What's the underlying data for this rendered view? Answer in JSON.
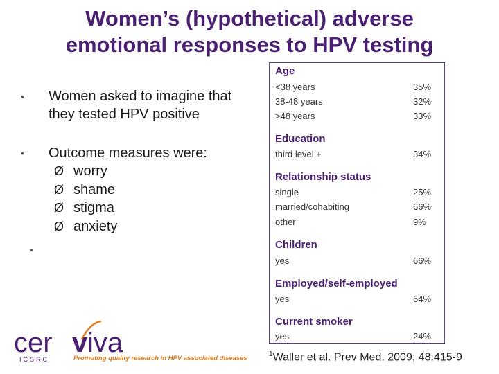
{
  "title": {
    "line1": "Women’s (hypothetical) adverse",
    "line2": "emotional responses to HPV testing"
  },
  "bullets": [
    {
      "text_line1": "Women asked to imagine that",
      "text_line2": "they tested HPV positive"
    },
    {
      "text": "Outcome measures were:"
    }
  ],
  "outcome_measures": [
    "worry",
    "shame",
    "stigma",
    "anxiety"
  ],
  "table": {
    "age": {
      "header": "Age",
      "rows": [
        {
          "label": "<38 years",
          "value": "35%"
        },
        {
          "label": "38-48 years",
          "value": "32%"
        },
        {
          "label": ">48 years",
          "value": "33%"
        }
      ]
    },
    "education": {
      "header": "Education",
      "rows": [
        {
          "label": "third level +",
          "value": "34%"
        }
      ]
    },
    "relationship": {
      "header": "Relationship status",
      "rows": [
        {
          "label": "single",
          "value": "25%"
        },
        {
          "label": "married/cohabiting",
          "value": "66%"
        },
        {
          "label": "other",
          "value": "9%"
        }
      ]
    },
    "children": {
      "header": "Children",
      "rows": [
        {
          "label": "yes",
          "value": "66%"
        }
      ]
    },
    "employed": {
      "header": "Employed/self-employed",
      "rows": [
        {
          "label": "yes",
          "value": "64%"
        }
      ]
    },
    "smoker": {
      "header": "Current smoker",
      "rows": [
        {
          "label": "yes",
          "value": "24%"
        }
      ]
    }
  },
  "logo": {
    "name_part1": "cer",
    "name_part2": "iva",
    "sub": "ICSRC",
    "tagline": "Promoting quality research in HPV associated diseases"
  },
  "footnote": {
    "marker": "1",
    "text": "Waller et al. Prev Med. 2009; 48:415-9"
  },
  "colors": {
    "purple": "#4b1f73",
    "orange": "#e07b1a"
  }
}
